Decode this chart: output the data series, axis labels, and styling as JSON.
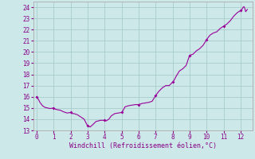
{
  "title": "",
  "xlabel": "Windchill (Refroidissement éolien,°C)",
  "ylabel": "",
  "bg_color": "#cce8e8",
  "line_color": "#990099",
  "marker_color": "#990099",
  "grid_color": "#aacccc",
  "axis_color": "#aaaaaa",
  "tick_color": "#880088",
  "xlim": [
    -0.2,
    12.7
  ],
  "ylim": [
    13,
    24.5
  ],
  "xticks": [
    0,
    1,
    2,
    3,
    4,
    5,
    6,
    7,
    8,
    9,
    10,
    11,
    12
  ],
  "yticks": [
    13,
    14,
    15,
    16,
    17,
    18,
    19,
    20,
    21,
    22,
    23,
    24
  ],
  "x": [
    0.0,
    0.1,
    0.2,
    0.35,
    0.5,
    0.65,
    0.8,
    1.0,
    1.1,
    1.2,
    1.4,
    1.6,
    1.8,
    2.0,
    2.1,
    2.2,
    2.4,
    2.6,
    2.8,
    3.0,
    3.1,
    3.15,
    3.3,
    3.5,
    3.65,
    3.75,
    4.0,
    4.1,
    4.25,
    4.4,
    4.6,
    4.8,
    5.0,
    5.1,
    5.2,
    5.4,
    5.6,
    5.8,
    6.0,
    6.1,
    6.2,
    6.4,
    6.6,
    6.8,
    7.0,
    7.1,
    7.2,
    7.4,
    7.6,
    7.8,
    8.0,
    8.1,
    8.2,
    8.4,
    8.6,
    8.8,
    9.0,
    9.1,
    9.2,
    9.4,
    9.6,
    9.8,
    10.0,
    10.1,
    10.2,
    10.4,
    10.6,
    10.8,
    11.0,
    11.1,
    11.2,
    11.4,
    11.5,
    11.6,
    11.8,
    12.0,
    12.05,
    12.1,
    12.15,
    12.2,
    12.25,
    12.3,
    12.35,
    12.4
  ],
  "y": [
    16.0,
    15.8,
    15.5,
    15.2,
    15.05,
    15.0,
    14.95,
    15.0,
    14.9,
    14.85,
    14.8,
    14.65,
    14.55,
    14.6,
    14.5,
    14.5,
    14.4,
    14.2,
    14.0,
    13.4,
    13.35,
    13.3,
    13.5,
    13.8,
    13.85,
    13.9,
    13.9,
    13.85,
    14.0,
    14.3,
    14.5,
    14.55,
    14.6,
    14.8,
    15.1,
    15.2,
    15.25,
    15.3,
    15.3,
    15.35,
    15.4,
    15.45,
    15.5,
    15.6,
    16.1,
    16.3,
    16.5,
    16.8,
    17.0,
    17.0,
    17.3,
    17.5,
    17.8,
    18.3,
    18.5,
    18.8,
    19.7,
    19.75,
    19.8,
    20.1,
    20.3,
    20.6,
    21.1,
    21.3,
    21.5,
    21.7,
    21.8,
    22.1,
    22.3,
    22.4,
    22.5,
    22.8,
    23.0,
    23.2,
    23.5,
    23.7,
    23.75,
    23.85,
    24.0,
    24.05,
    23.9,
    23.6,
    23.7,
    23.8
  ],
  "marker_x": [
    0.0,
    1.0,
    2.0,
    3.0,
    4.0,
    5.0,
    6.0,
    7.0,
    8.0,
    9.0,
    10.0,
    11.0,
    12.0
  ],
  "marker_y": [
    16.0,
    15.0,
    14.6,
    13.4,
    13.9,
    14.6,
    15.3,
    16.1,
    17.3,
    19.7,
    21.1,
    22.3,
    23.7
  ]
}
